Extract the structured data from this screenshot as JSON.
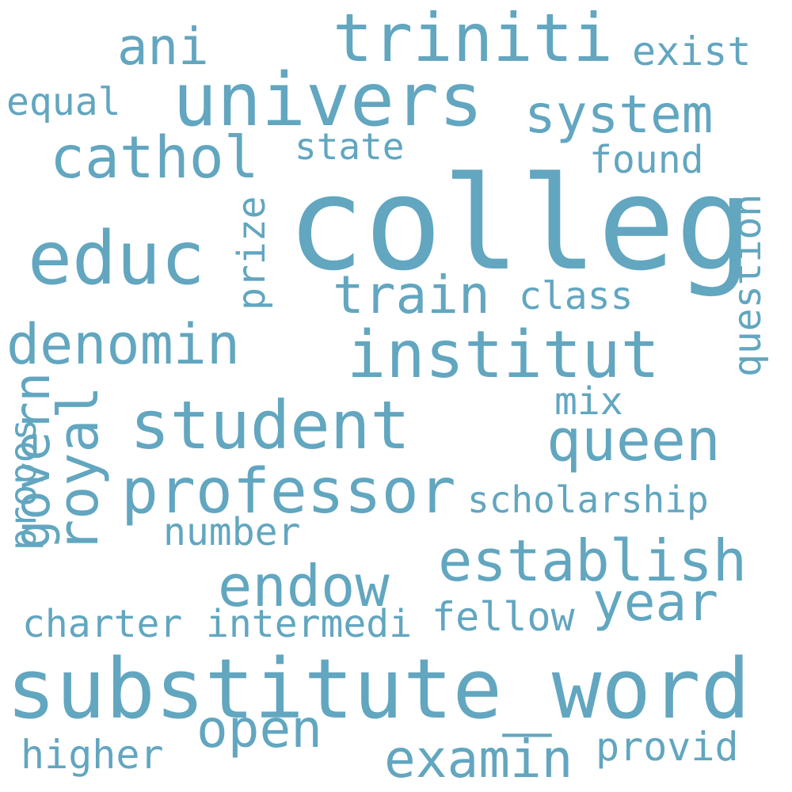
{
  "words": {
    "colleg": "colleg",
    "substitute_word": "substitute_word",
    "univers": "univers",
    "triniti": "triniti",
    "institut": "institut",
    "educ": "educ",
    "student": "student",
    "professor": "professor",
    "cathol": "cathol",
    "queen": "queen",
    "establish": "establish",
    "endow": "endow",
    "denomin": "denomin",
    "system": "system",
    "train": "train",
    "ani": "ani",
    "examin": "examin",
    "royal": "royal",
    "govern": "govern",
    "open": "open",
    "year": "year",
    "question": "question",
    "scholarship": "scholarship",
    "exist": "exist",
    "equal": "equal",
    "state": "state",
    "found": "found",
    "prize": "prize",
    "class": "class",
    "mix": "mix",
    "propos": "propos",
    "number": "number",
    "charter": "charter",
    "intermedi": "intermedi",
    "fellow": "fellow",
    "higher": "higher",
    "provid": "provid"
  },
  "colors": {
    "word": "#62a6c0",
    "background": "#ffffff"
  }
}
